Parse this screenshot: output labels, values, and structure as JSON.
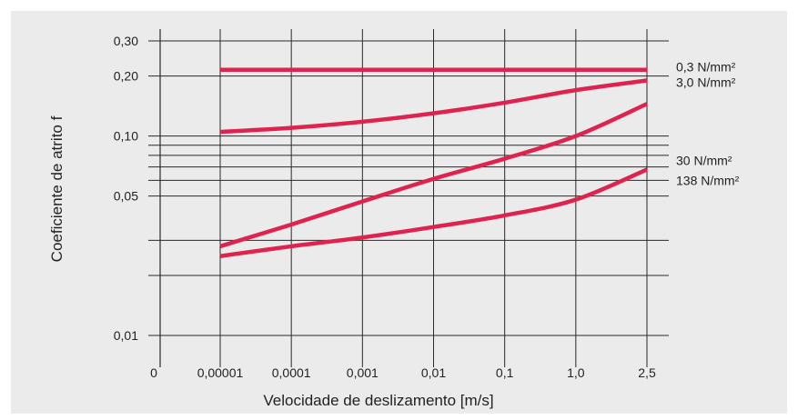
{
  "chart_data": {
    "type": "line",
    "title": "",
    "xlabel": "Velocidade de deslizamento [m/s]",
    "ylabel": "Coeficiente de atrito f",
    "x_scale": "log-categorical",
    "x_ticks": [
      "0",
      "0,00001",
      "0,0001",
      "0,001",
      "0,01",
      "0,1",
      "1,0",
      "2,5"
    ],
    "y_scale": "log",
    "ylim": [
      0.01,
      0.3
    ],
    "y_ticks": [
      {
        "value": 0.3,
        "label": "0,30"
      },
      {
        "value": 0.2,
        "label": "0,20"
      },
      {
        "value": 0.1,
        "label": "0,10"
      },
      {
        "value": 0.05,
        "label": "0,05"
      },
      {
        "value": 0.01,
        "label": "0,01"
      }
    ],
    "grid": true,
    "series_color": "#e0234e",
    "series": [
      {
        "name": "0,3 N/mm²",
        "x": [
          "0,00001",
          "2,5"
        ],
        "values": [
          0.215,
          0.215
        ]
      },
      {
        "name": "3,0 N/mm²",
        "x": [
          "0,00001",
          "0,0001",
          "0,001",
          "0,01",
          "0,1",
          "1,0",
          "2,5"
        ],
        "values": [
          0.105,
          0.11,
          0.118,
          0.13,
          0.147,
          0.17,
          0.19
        ]
      },
      {
        "name": "30 N/mm²",
        "x": [
          "0,00001",
          "0,0001",
          "0,001",
          "0,01",
          "0,1",
          "1,0",
          "2,5"
        ],
        "values": [
          0.028,
          0.036,
          0.047,
          0.061,
          0.077,
          0.1,
          0.145
        ]
      },
      {
        "name": "138 N/mm²",
        "x": [
          "0,00001",
          "0,0001",
          "0,001",
          "0,01",
          "0,1",
          "1,0",
          "2,5"
        ],
        "values": [
          0.025,
          0.028,
          0.031,
          0.035,
          0.04,
          0.048,
          0.068
        ]
      }
    ]
  }
}
